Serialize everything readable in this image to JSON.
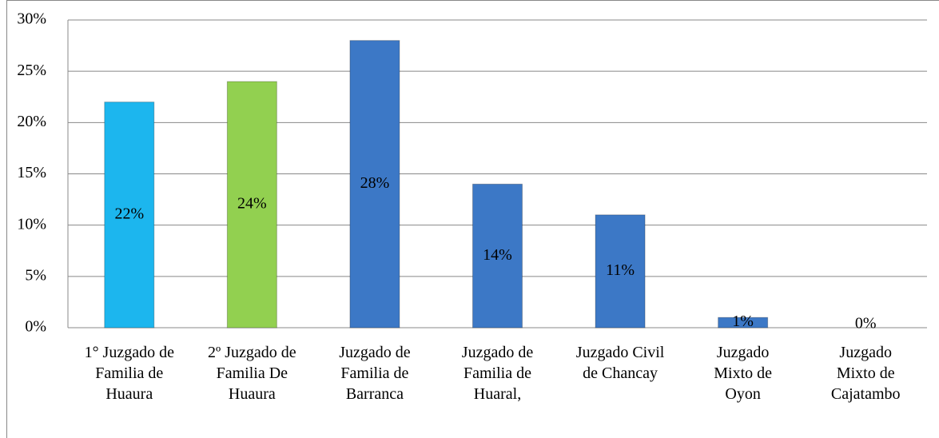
{
  "chart_data": {
    "type": "bar",
    "categories": [
      "1° Juzgado de\nFamilia de\nHuaura",
      "2º Juzgado de\nFamilia De\nHuaura",
      "Juzgado de\nFamilia de\nBarranca",
      "Juzgado de\nFamilia de\nHuaral,",
      "Juzgado Civil\nde Chancay",
      "Juzgado\nMixto de\nOyon",
      "Juzgado\nMixto de\nCajatambo"
    ],
    "values": [
      22,
      24,
      28,
      14,
      11,
      1,
      0
    ],
    "value_labels": [
      "22%",
      "24%",
      "28%",
      "14%",
      "11%",
      "1%",
      "0%"
    ],
    "colors": [
      "#1cb6ee",
      "#92d050",
      "#3c78c6",
      "#3c78c6",
      "#3c78c6",
      "#3c78c6",
      "#3c78c6"
    ],
    "ylim": [
      0,
      30
    ],
    "yticks": [
      {
        "value": 0,
        "label": "0%"
      },
      {
        "value": 5,
        "label": "5%"
      },
      {
        "value": 10,
        "label": "10%"
      },
      {
        "value": 15,
        "label": "15%"
      },
      {
        "value": 20,
        "label": "20%"
      },
      {
        "value": 25,
        "label": "25%"
      },
      {
        "value": 30,
        "label": "30%"
      }
    ],
    "grid": true
  }
}
